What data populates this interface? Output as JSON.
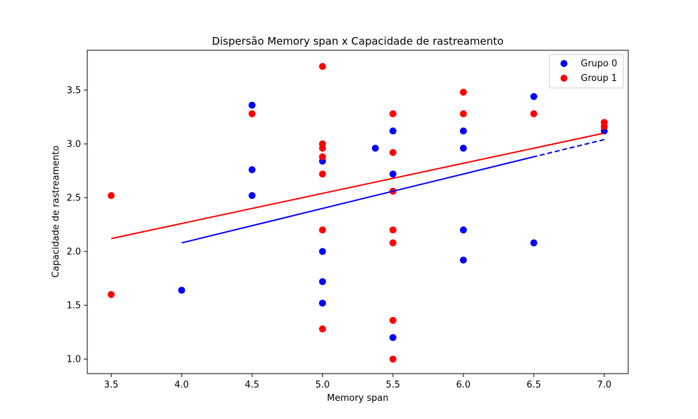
{
  "chart_data": {
    "type": "scatter",
    "title": "Dispersão Memory span x Capacidade de rastreamento",
    "xlabel": "Memory span",
    "ylabel": "Capacidade de rastreamento",
    "xlim": [
      3.33,
      7.17
    ],
    "ylim": [
      0.865,
      3.87
    ],
    "xticks": [
      3.5,
      4.0,
      4.5,
      5.0,
      5.5,
      6.0,
      6.5,
      7.0
    ],
    "xtick_labels": [
      "3.5",
      "4.0",
      "4.5",
      "5.0",
      "5.5",
      "6.0",
      "6.5",
      "7.0"
    ],
    "yticks": [
      1.0,
      1.5,
      2.0,
      2.5,
      3.0,
      3.5
    ],
    "ytick_labels": [
      "1.0",
      "1.5",
      "2.0",
      "2.5",
      "3.0",
      "3.5"
    ],
    "grid": false,
    "legend_position": "top-right",
    "series": [
      {
        "name": "Grupo 0",
        "color": "#0000ff",
        "points": [
          [
            4.0,
            1.64
          ],
          [
            4.5,
            3.36
          ],
          [
            4.5,
            2.76
          ],
          [
            4.5,
            2.52
          ],
          [
            5.0,
            2.84
          ],
          [
            5.0,
            2.0
          ],
          [
            5.0,
            1.72
          ],
          [
            5.0,
            1.52
          ],
          [
            5.375,
            2.96
          ],
          [
            5.5,
            3.12
          ],
          [
            5.5,
            2.72
          ],
          [
            5.5,
            1.2
          ],
          [
            6.0,
            3.12
          ],
          [
            6.0,
            2.96
          ],
          [
            6.0,
            2.2
          ],
          [
            6.0,
            1.92
          ],
          [
            6.5,
            3.44
          ],
          [
            6.5,
            2.08
          ],
          [
            7.0,
            3.12
          ]
        ],
        "trend": {
          "x": [
            4.0,
            7.0
          ],
          "y": [
            2.08,
            3.04
          ],
          "style": "solid-then-dashed"
        }
      },
      {
        "name": "Group 1",
        "color": "#ff0000",
        "points": [
          [
            3.5,
            2.52
          ],
          [
            3.5,
            1.6
          ],
          [
            4.5,
            3.28
          ],
          [
            5.0,
            3.72
          ],
          [
            5.0,
            3.0
          ],
          [
            5.0,
            2.96
          ],
          [
            5.0,
            2.88
          ],
          [
            5.0,
            2.72
          ],
          [
            5.0,
            2.2
          ],
          [
            5.0,
            1.28
          ],
          [
            5.5,
            3.28
          ],
          [
            5.5,
            2.92
          ],
          [
            5.5,
            2.56
          ],
          [
            5.5,
            2.2
          ],
          [
            5.5,
            2.08
          ],
          [
            5.5,
            1.36
          ],
          [
            5.5,
            1.0
          ],
          [
            6.0,
            3.48
          ],
          [
            6.0,
            3.28
          ],
          [
            6.5,
            3.28
          ],
          [
            7.0,
            3.2
          ],
          [
            7.0,
            3.16
          ]
        ],
        "trend": {
          "x": [
            3.5,
            7.0
          ],
          "y": [
            2.12,
            3.1
          ],
          "style": "solid"
        }
      }
    ]
  }
}
